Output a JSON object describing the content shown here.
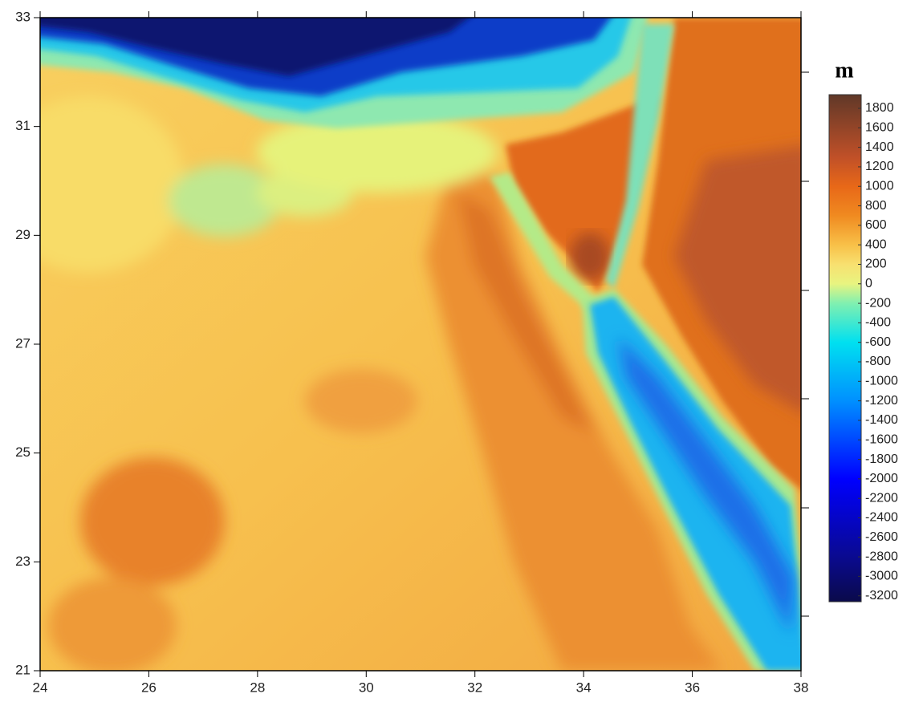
{
  "map": {
    "unit": "m",
    "xlim": [
      24,
      38
    ],
    "ylim": [
      21,
      33
    ],
    "xticks": [
      24,
      26,
      28,
      30,
      32,
      34,
      36,
      38
    ],
    "yticks": [
      21,
      23,
      25,
      27,
      29,
      31,
      33
    ],
    "colorbar": {
      "lim": [
        -3260,
        1940
      ],
      "ticks": [
        1800,
        1600,
        1400,
        1200,
        1000,
        800,
        600,
        400,
        200,
        0,
        -200,
        -400,
        -600,
        -800,
        -1000,
        -1200,
        -1400,
        -1600,
        -1800,
        -2000,
        -2200,
        -2400,
        -2600,
        -2800,
        -3000,
        -3200
      ]
    }
  }
}
